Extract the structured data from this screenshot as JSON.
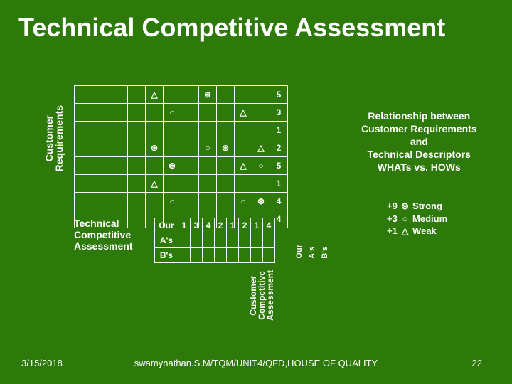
{
  "title": "Technical Competitive Assessment",
  "custReqLabel": "Customer\nRequirements",
  "matrix": {
    "cols": 12,
    "rows": [
      {
        "cells": [
          "",
          "",
          "",
          "",
          "△",
          "",
          "",
          "⊛",
          "",
          "",
          "",
          "5"
        ]
      },
      {
        "cells": [
          "",
          "",
          "",
          "",
          "",
          "○",
          "",
          "",
          "",
          "△",
          "",
          "3"
        ]
      },
      {
        "cells": [
          "",
          "",
          "",
          "",
          "",
          "",
          "",
          "",
          "",
          "",
          "",
          "1"
        ]
      },
      {
        "cells": [
          "",
          "",
          "",
          "",
          "⊛",
          "",
          "",
          "○",
          "⊛",
          "",
          "△",
          "2"
        ]
      },
      {
        "cells": [
          "",
          "",
          "",
          "",
          "",
          "⊛",
          "",
          "",
          "",
          "△",
          "○",
          "5"
        ]
      },
      {
        "cells": [
          "",
          "",
          "",
          "",
          "△",
          "",
          "",
          "",
          "",
          "",
          "",
          "1"
        ]
      },
      {
        "cells": [
          "",
          "",
          "",
          "",
          "",
          "○",
          "",
          "",
          "",
          "○",
          "⊛",
          "4"
        ]
      },
      {
        "cells": [
          "",
          "",
          "",
          "",
          "",
          "",
          "",
          "",
          "",
          "",
          "",
          "4"
        ]
      }
    ]
  },
  "tca": {
    "label1": "Technical",
    "label2": "Competitive",
    "label3": "Assessment",
    "rowLabels": [
      "Our",
      "A's",
      "B's"
    ],
    "values": [
      "1",
      "3",
      "4",
      "2",
      "1",
      "2",
      "1",
      "4"
    ]
  },
  "oab": [
    "Our",
    "A's",
    "B's"
  ],
  "cca": "Customer\nCompetitive\nAssessment",
  "rel": "Relationship between\nCustomer Requirements\nand\nTechnical Descriptors\nWHATs vs. HOWs",
  "legend": [
    {
      "k": "+9",
      "sym": "⊛",
      "t": "Strong"
    },
    {
      "k": "+3",
      "sym": "○",
      "t": "Medium"
    },
    {
      "k": "+1",
      "sym": "△",
      "t": "Weak"
    }
  ],
  "footer": {
    "date": "3/15/2018",
    "credit": "swamynathan.S.M/TQM/UNIT4/QFD,HOUSE OF QUALITY",
    "page": "22"
  }
}
